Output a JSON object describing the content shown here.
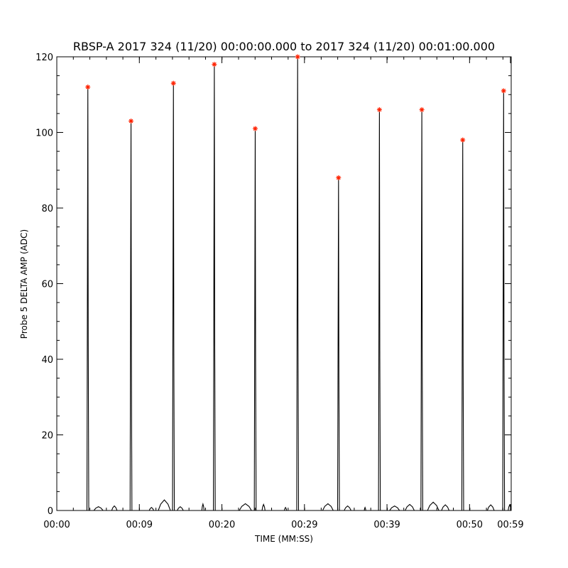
{
  "chart_data": {
    "type": "line",
    "title": "RBSP-A 2017 324 (11/20) 00:00:00.000 to 2017 324 (11/20) 00:01:00.000",
    "xlabel": "TIME (MM:SS)",
    "ylabel": "Probe 5 DELTA AMP (ADC)",
    "xlim": [
      0,
      60
    ],
    "ylim": [
      0,
      120
    ],
    "x_ticks": [
      {
        "value": 0,
        "label": "00:00"
      },
      {
        "value": 10.9,
        "label": "00:09"
      },
      {
        "value": 21.8,
        "label": "00:20"
      },
      {
        "value": 32.7,
        "label": "00:29"
      },
      {
        "value": 43.6,
        "label": "00:39"
      },
      {
        "value": 54.5,
        "label": "00:50"
      },
      {
        "value": 59.9,
        "label": "00:59"
      }
    ],
    "y_ticks": [
      0,
      20,
      40,
      60,
      80,
      100,
      120
    ],
    "series": [
      {
        "color": "#000000",
        "pulses": [
          {
            "x": 4.1,
            "peak": 112
          },
          {
            "x": 9.8,
            "peak": 103
          },
          {
            "x": 15.4,
            "peak": 113
          },
          {
            "x": 20.8,
            "peak": 118
          },
          {
            "x": 26.2,
            "peak": 101
          },
          {
            "x": 31.8,
            "peak": 120
          },
          {
            "x": 37.2,
            "peak": 88
          },
          {
            "x": 42.6,
            "peak": 106
          },
          {
            "x": 48.2,
            "peak": 106
          },
          {
            "x": 53.6,
            "peak": 98
          },
          {
            "x": 59.0,
            "peak": 111
          }
        ],
        "baseline_bumps": [
          {
            "x": 5.5,
            "width": 1.2,
            "height": 1.0
          },
          {
            "x": 7.6,
            "width": 0.7,
            "height": 1.2
          },
          {
            "x": 12.5,
            "width": 0.6,
            "height": 0.8
          },
          {
            "x": 14.2,
            "width": 1.6,
            "height": 2.8
          },
          {
            "x": 16.3,
            "width": 0.8,
            "height": 1.0
          },
          {
            "x": 19.3,
            "width": 0.3,
            "height": 1.7
          },
          {
            "x": 24.9,
            "width": 1.6,
            "height": 1.8
          },
          {
            "x": 27.3,
            "width": 0.4,
            "height": 1.6
          },
          {
            "x": 30.2,
            "width": 0.3,
            "height": 0.8
          },
          {
            "x": 35.8,
            "width": 1.4,
            "height": 1.8
          },
          {
            "x": 38.4,
            "width": 0.9,
            "height": 1.2
          },
          {
            "x": 40.7,
            "width": 0.2,
            "height": 0.8
          },
          {
            "x": 44.6,
            "width": 1.3,
            "height": 1.2
          },
          {
            "x": 46.6,
            "width": 1.2,
            "height": 1.6
          },
          {
            "x": 49.7,
            "width": 1.5,
            "height": 2.2
          },
          {
            "x": 51.3,
            "width": 1.0,
            "height": 1.5
          },
          {
            "x": 57.3,
            "width": 0.9,
            "height": 1.5
          },
          {
            "x": 59.8,
            "width": 0.4,
            "height": 1.5
          }
        ]
      }
    ],
    "markers": {
      "symbol": "*",
      "color": "#ff2200"
    },
    "grid": false,
    "legend": "none"
  }
}
